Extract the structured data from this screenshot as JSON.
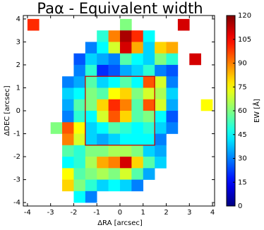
{
  "chart_data": {
    "type": "heatmap",
    "title": "Paα - Equivalent width",
    "xlabel": "ΔRA [arcsec]",
    "ylabel": "ΔDEC [arcsec]",
    "colorbar_label": "EW [Å]",
    "colormap": "jet",
    "x": [
      -3.75,
      -3.25,
      -2.75,
      -2.25,
      -1.75,
      -1.25,
      -0.75,
      -0.25,
      0.25,
      0.75,
      1.25,
      1.75,
      2.25,
      2.75,
      3.25,
      3.75
    ],
    "y": [
      3.75,
      3.25,
      2.75,
      2.25,
      1.75,
      1.25,
      0.75,
      0.25,
      -0.25,
      -0.75,
      -1.25,
      -1.75,
      -2.25,
      -2.75,
      -3.25,
      -3.75
    ],
    "values": [
      [
        100,
        null,
        null,
        null,
        null,
        null,
        null,
        null,
        60,
        null,
        null,
        null,
        null,
        110,
        null,
        null
      ],
      [
        null,
        null,
        null,
        null,
        null,
        null,
        50,
        90,
        115,
        100,
        45,
        null,
        null,
        null,
        null,
        null
      ],
      [
        null,
        null,
        null,
        null,
        null,
        30,
        45,
        70,
        110,
        85,
        40,
        80,
        85,
        null,
        null,
        null
      ],
      [
        null,
        null,
        null,
        null,
        25,
        40,
        35,
        30,
        55,
        45,
        40,
        60,
        50,
        null,
        110,
        null
      ],
      [
        null,
        null,
        null,
        null,
        30,
        50,
        20,
        25,
        35,
        40,
        50,
        30,
        25,
        null,
        null,
        null
      ],
      [
        null,
        null,
        null,
        30,
        35,
        55,
        40,
        45,
        55,
        45,
        95,
        70,
        30,
        null,
        null,
        null
      ],
      [
        null,
        null,
        null,
        40,
        45,
        60,
        55,
        75,
        80,
        60,
        70,
        65,
        40,
        null,
        null,
        null
      ],
      [
        null,
        null,
        null,
        35,
        55,
        60,
        80,
        100,
        90,
        55,
        95,
        70,
        35,
        null,
        null,
        75
      ],
      [
        null,
        null,
        null,
        30,
        50,
        45,
        70,
        95,
        80,
        55,
        60,
        45,
        25,
        null,
        null,
        null
      ],
      [
        null,
        null,
        60,
        95,
        75,
        40,
        45,
        55,
        50,
        45,
        50,
        40,
        30,
        null,
        null,
        null
      ],
      [
        null,
        null,
        null,
        90,
        70,
        40,
        35,
        40,
        45,
        45,
        45,
        30,
        null,
        null,
        null,
        null
      ],
      [
        null,
        null,
        null,
        55,
        50,
        60,
        60,
        65,
        65,
        60,
        40,
        35,
        null,
        null,
        null,
        null
      ],
      [
        null,
        null,
        null,
        45,
        50,
        65,
        85,
        90,
        110,
        80,
        55,
        40,
        null,
        null,
        null,
        null
      ],
      [
        null,
        null,
        null,
        75,
        55,
        60,
        65,
        60,
        70,
        55,
        35,
        null,
        null,
        null,
        null,
        null
      ],
      [
        null,
        null,
        null,
        80,
        60,
        50,
        40,
        45,
        40,
        30,
        null,
        null,
        null,
        null,
        null,
        null
      ],
      [
        null,
        null,
        null,
        null,
        45,
        30,
        null,
        null,
        null,
        null,
        null,
        null,
        null,
        null,
        null,
        null
      ]
    ],
    "cell": 0.5,
    "xlim": [
      -4.18,
      4.09
    ],
    "ylim": [
      -4.15,
      4.15
    ],
    "xticks": [
      -4,
      -3,
      -2,
      -1,
      0,
      1,
      2,
      3,
      4
    ],
    "yticks": [
      -4,
      -3,
      -2,
      -1,
      0,
      1,
      2,
      3,
      4
    ],
    "zlim": [
      0,
      120
    ],
    "zticks": [
      0,
      15,
      30,
      45,
      60,
      75,
      90,
      105,
      120
    ],
    "box": {
      "x": [
        -1.5,
        1.5
      ],
      "y": [
        -1.5,
        1.5
      ],
      "color": "#cc0000"
    }
  }
}
